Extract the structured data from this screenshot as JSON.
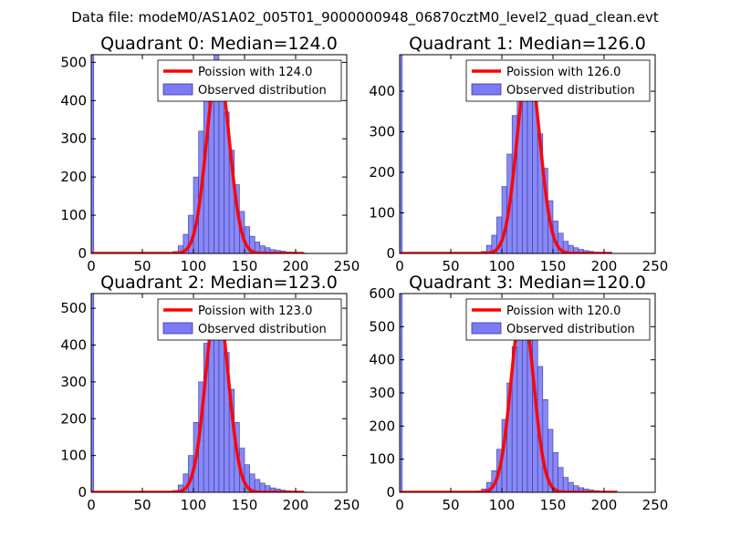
{
  "figure_title": "Data file: modeM0/AS1A02_005T01_9000000948_06870cztM0_level2_quad_clean.evt",
  "colors": {
    "bar_fill": "#7b7bf5",
    "bar_edge": "#3a3aa0",
    "poisson_line": "#ff0000",
    "axes": "#000000"
  },
  "chart_data": [
    {
      "type": "bar",
      "title": "Quadrant 0: Median=124.0",
      "median": 124.0,
      "xlim": [
        0,
        250
      ],
      "ylim": [
        0,
        520
      ],
      "xticks": [
        "0",
        "50",
        "100",
        "150",
        "200",
        "250"
      ],
      "yticks": [
        "0",
        "100",
        "200",
        "300",
        "400",
        "500"
      ],
      "legend": [
        "Poission with 124.0",
        "Observed distribution"
      ],
      "legend_location": "top-right",
      "bin_width": 5,
      "zero_bin": 520,
      "bin_starts": [
        80,
        85,
        90,
        95,
        100,
        105,
        110,
        115,
        120,
        125,
        130,
        135,
        140,
        145,
        150,
        155,
        160,
        165,
        170,
        175,
        180,
        185,
        190,
        195,
        200,
        205
      ],
      "bin_counts": [
        5,
        20,
        50,
        100,
        200,
        320,
        410,
        490,
        520,
        460,
        370,
        270,
        180,
        110,
        70,
        45,
        30,
        20,
        15,
        10,
        8,
        6,
        4,
        3,
        2,
        1
      ],
      "poisson_x_range": [
        0,
        208
      ],
      "poisson_peak": 490
    },
    {
      "type": "bar",
      "title": "Quadrant 1: Median=126.0",
      "median": 126.0,
      "xlim": [
        0,
        250
      ],
      "ylim": [
        0,
        490
      ],
      "xticks": [
        "0",
        "50",
        "100",
        "150",
        "200",
        "250"
      ],
      "yticks": [
        "0",
        "100",
        "200",
        "300",
        "400"
      ],
      "legend": [
        "Poission with 126.0",
        "Observed distribution"
      ],
      "legend_location": "top-right",
      "bin_width": 5,
      "zero_bin": 490,
      "bin_starts": [
        75,
        80,
        85,
        90,
        95,
        100,
        105,
        110,
        115,
        120,
        125,
        130,
        135,
        140,
        145,
        150,
        155,
        160,
        165,
        170,
        175,
        180,
        185,
        190,
        195,
        200
      ],
      "bin_counts": [
        2,
        5,
        20,
        45,
        90,
        165,
        245,
        340,
        420,
        465,
        450,
        390,
        295,
        210,
        130,
        80,
        50,
        30,
        20,
        14,
        10,
        7,
        5,
        3,
        2,
        1
      ],
      "poisson_x_range": [
        0,
        208
      ],
      "poisson_peak": 465
    },
    {
      "type": "bar",
      "title": "Quadrant 2: Median=123.0",
      "median": 123.0,
      "xlim": [
        0,
        250
      ],
      "ylim": [
        0,
        540
      ],
      "xticks": [
        "0",
        "50",
        "100",
        "150",
        "200",
        "250"
      ],
      "yticks": [
        "0",
        "100",
        "200",
        "300",
        "400",
        "500"
      ],
      "legend": [
        "Poission with 123.0",
        "Observed distribution"
      ],
      "legend_location": "top-right",
      "bin_width": 5,
      "zero_bin": 540,
      "bin_starts": [
        80,
        85,
        90,
        95,
        100,
        105,
        110,
        115,
        120,
        125,
        130,
        135,
        140,
        145,
        150,
        155,
        160,
        165,
        170,
        175,
        180,
        185,
        190,
        195,
        200,
        205
      ],
      "bin_counts": [
        5,
        20,
        50,
        100,
        190,
        300,
        405,
        490,
        520,
        465,
        380,
        280,
        190,
        120,
        75,
        50,
        35,
        25,
        18,
        12,
        9,
        6,
        4,
        3,
        2,
        1
      ],
      "poisson_x_range": [
        0,
        208
      ],
      "poisson_peak": 520
    },
    {
      "type": "bar",
      "title": "Quadrant 3: Median=120.0",
      "median": 120.0,
      "xlim": [
        0,
        250
      ],
      "ylim": [
        0,
        600
      ],
      "xticks": [
        "0",
        "50",
        "100",
        "150",
        "200",
        "250"
      ],
      "yticks": [
        "0",
        "100",
        "200",
        "300",
        "400",
        "500",
        "600"
      ],
      "legend": [
        "Poission with 120.0",
        "Observed distribution"
      ],
      "legend_location": "top-right",
      "bin_width": 5,
      "zero_bin": 600,
      "bin_starts": [
        75,
        80,
        85,
        90,
        95,
        100,
        105,
        110,
        115,
        120,
        125,
        130,
        135,
        140,
        145,
        150,
        155,
        160,
        165,
        170,
        175,
        180,
        185,
        190,
        195,
        200
      ],
      "bin_counts": [
        3,
        10,
        30,
        65,
        130,
        220,
        330,
        440,
        520,
        570,
        540,
        470,
        380,
        280,
        190,
        120,
        75,
        45,
        30,
        20,
        14,
        10,
        7,
        5,
        3,
        2
      ],
      "poisson_x_range": [
        0,
        213
      ],
      "poisson_peak": 560
    }
  ]
}
